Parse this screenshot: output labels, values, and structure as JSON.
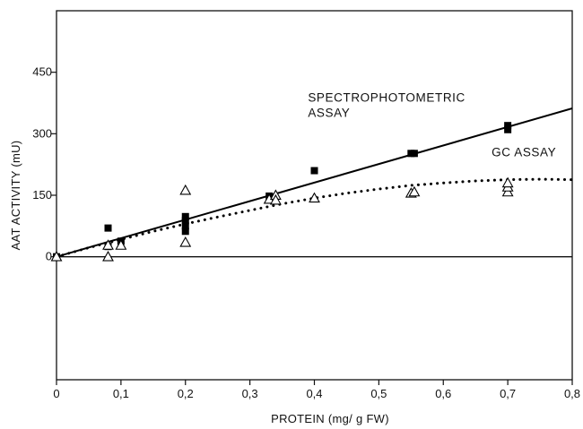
{
  "chart_data": {
    "type": "scatter",
    "title": "",
    "xlabel": "PROTEIN (mg/ g FW)",
    "ylabel": "AAT ACTIVITY (mU)",
    "xlim": [
      0,
      0.8
    ],
    "ylim": [
      -300,
      600
    ],
    "x_ticks": [
      0,
      0.1,
      0.2,
      0.3,
      0.4,
      0.5,
      0.6,
      0.7,
      0.8
    ],
    "x_tick_labels": [
      "0",
      "0,1",
      "0,2",
      "0,3",
      "0,4",
      "0,5",
      "0,6",
      "0,7",
      "0,8"
    ],
    "y_ticks": [
      0,
      150,
      300,
      450
    ],
    "y_tick_labels": [
      "0",
      "150",
      "300",
      "450"
    ],
    "grid": false,
    "zero_line": true,
    "annotations": [
      {
        "id": "spec-label",
        "lines": [
          "SPECTROPHOTOMETRIC",
          "ASSAY"
        ],
        "x": 0.39,
        "y": 378
      },
      {
        "id": "gc-label",
        "lines": [
          "GC ASSAY"
        ],
        "x": 0.675,
        "y": 245
      }
    ],
    "series": [
      {
        "marker": "filled-square",
        "color": "#000000",
        "points": [
          {
            "x": 0.0,
            "y": 0
          },
          {
            "x": 0.08,
            "y": 70
          },
          {
            "x": 0.08,
            "y": 25
          },
          {
            "x": 0.1,
            "y": 38
          },
          {
            "x": 0.2,
            "y": 62
          },
          {
            "x": 0.2,
            "y": 75
          },
          {
            "x": 0.2,
            "y": 88
          },
          {
            "x": 0.2,
            "y": 98
          },
          {
            "x": 0.33,
            "y": 148
          },
          {
            "x": 0.4,
            "y": 210
          },
          {
            "x": 0.55,
            "y": 252
          },
          {
            "x": 0.555,
            "y": 252
          },
          {
            "x": 0.7,
            "y": 310
          },
          {
            "x": 0.7,
            "y": 320
          }
        ]
      },
      {
        "marker": "open-triangle",
        "color": "#000000",
        "points": [
          {
            "x": 0.0,
            "y": 0
          },
          {
            "x": 0.08,
            "y": 0
          },
          {
            "x": 0.08,
            "y": 28
          },
          {
            "x": 0.1,
            "y": 28
          },
          {
            "x": 0.2,
            "y": 35
          },
          {
            "x": 0.2,
            "y": 162
          },
          {
            "x": 0.33,
            "y": 140
          },
          {
            "x": 0.34,
            "y": 150
          },
          {
            "x": 0.34,
            "y": 138
          },
          {
            "x": 0.4,
            "y": 143
          },
          {
            "x": 0.55,
            "y": 155
          },
          {
            "x": 0.555,
            "y": 158
          },
          {
            "x": 0.7,
            "y": 158
          },
          {
            "x": 0.7,
            "y": 170
          },
          {
            "x": 0.7,
            "y": 180
          }
        ]
      }
    ],
    "fits": [
      {
        "id": "spectrophotometric-fit",
        "style": "solid",
        "color": "#000000",
        "x": [
          0,
          0.8
        ],
        "y": [
          0,
          362
        ]
      },
      {
        "id": "gc-fit",
        "style": "dotted",
        "color": "#000000",
        "x": [
          0,
          0.05,
          0.1,
          0.15,
          0.2,
          0.25,
          0.3,
          0.35,
          0.4,
          0.45,
          0.5,
          0.55,
          0.6,
          0.65,
          0.7,
          0.75,
          0.8
        ],
        "y": [
          0,
          22,
          42,
          62,
          80,
          97,
          113,
          129,
          143,
          155,
          165,
          174,
          180,
          185,
          188,
          189,
          188
        ]
      }
    ]
  }
}
